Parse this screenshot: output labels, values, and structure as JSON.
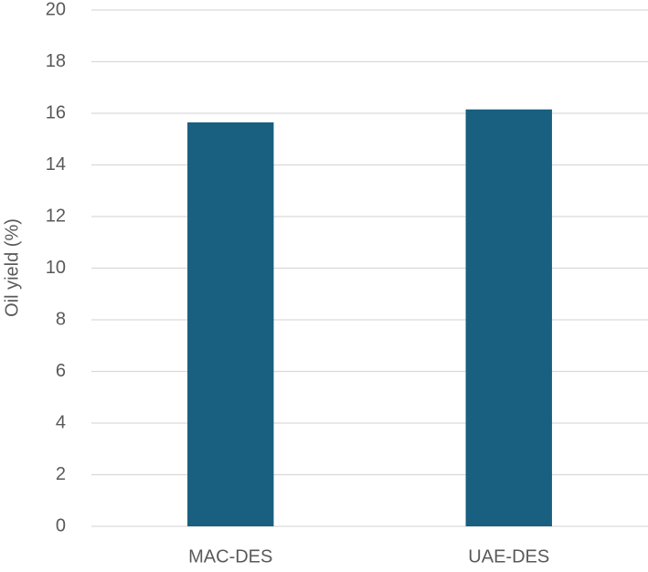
{
  "chart_data": {
    "type": "bar",
    "y_label": "Oil yield (%)",
    "categories": [
      "MAC-DES",
      "UAE-DES"
    ],
    "values": [
      15.65,
      16.15
    ],
    "color": "#185f80",
    "ylim": [
      0,
      20
    ],
    "yticks": [
      0,
      2,
      4,
      6,
      8,
      10,
      12,
      14,
      16,
      18,
      20
    ],
    "grid": true
  }
}
